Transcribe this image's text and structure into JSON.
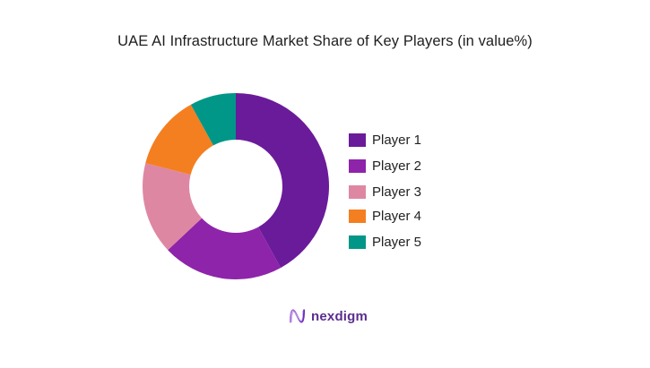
{
  "chart_data": {
    "type": "pie",
    "variant": "donut",
    "title": "UAE AI Infrastructure Market Share of Key Players (in value%)",
    "categories": [
      "Player 1",
      "Player 2",
      "Player 3",
      "Player 4",
      "Player 5"
    ],
    "values": [
      42,
      21,
      16,
      13,
      8
    ],
    "unit": "%",
    "colors": [
      "#6A1B9A",
      "#8E24AA",
      "#DE87A3",
      "#F47F20",
      "#009688"
    ],
    "start_angle": "12 o'clock",
    "direction": "clockwise",
    "legend_position": "right",
    "data_labels": false
  },
  "header": {
    "title": "UAE AI Infrastructure Market Share of Key Players (in value%)"
  },
  "legend": {
    "items": [
      {
        "label": "Player 1",
        "color": "#6A1B9A"
      },
      {
        "label": "Player 2",
        "color": "#8E24AA"
      },
      {
        "label": "Player 3",
        "color": "#DE87A3"
      },
      {
        "label": "Player 4",
        "color": "#F47F20"
      },
      {
        "label": "Player 5",
        "color": "#009688"
      }
    ]
  },
  "brand": {
    "name": "nexdigm",
    "logo_icon": "nexdigm-wave-logo"
  }
}
